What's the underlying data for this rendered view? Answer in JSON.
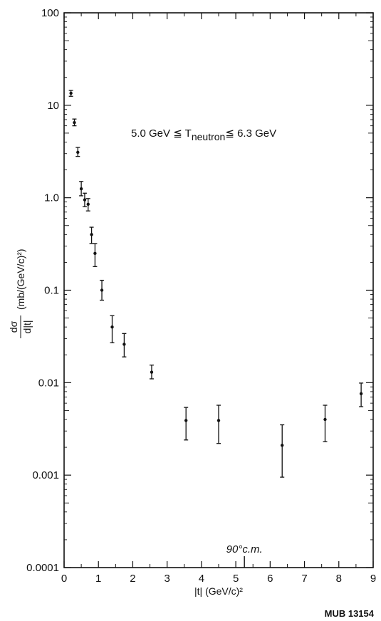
{
  "chart_data": {
    "type": "scatter",
    "xlabel": "|t| (GeV/c)²",
    "ylabel_numerator": "dσ",
    "ylabel_denominator": "d|t|",
    "ylabel_units": "(mb/(GeV/c)²)",
    "xlim": [
      0,
      9
    ],
    "ylim": [
      0.0001,
      100
    ],
    "yscale": "log",
    "grid": false,
    "x_ticks": [
      "0",
      "1",
      "2",
      "3",
      "4",
      "5",
      "6",
      "7",
      "8",
      "9"
    ],
    "y_ticks": [
      "0.0001",
      "0.001",
      "0.01",
      "0.1",
      "1.0",
      "10",
      "100"
    ],
    "annotation": {
      "prefix": "5.0 GeV ≦ T",
      "subscript": "neutron",
      "suffix": "≦ 6.3 GeV"
    },
    "marker_label": "90°c.m.",
    "marker_x": 5.25,
    "points": [
      {
        "x": 0.2,
        "y": 13.5,
        "ylow": 12.5,
        "yhigh": 14.5
      },
      {
        "x": 0.3,
        "y": 6.5,
        "ylow": 6.0,
        "yhigh": 7.1
      },
      {
        "x": 0.4,
        "y": 3.1,
        "ylow": 2.8,
        "yhigh": 3.5
      },
      {
        "x": 0.5,
        "y": 1.25,
        "ylow": 1.05,
        "yhigh": 1.5
      },
      {
        "x": 0.6,
        "y": 0.95,
        "ylow": 0.8,
        "yhigh": 1.12
      },
      {
        "x": 0.7,
        "y": 0.85,
        "ylow": 0.72,
        "yhigh": 0.98
      },
      {
        "x": 0.8,
        "y": 0.4,
        "ylow": 0.32,
        "yhigh": 0.48
      },
      {
        "x": 0.9,
        "y": 0.25,
        "ylow": 0.18,
        "yhigh": 0.32
      },
      {
        "x": 1.1,
        "y": 0.1,
        "ylow": 0.078,
        "yhigh": 0.128
      },
      {
        "x": 1.4,
        "y": 0.04,
        "ylow": 0.027,
        "yhigh": 0.053
      },
      {
        "x": 1.75,
        "y": 0.026,
        "ylow": 0.019,
        "yhigh": 0.034
      },
      {
        "x": 2.55,
        "y": 0.013,
        "ylow": 0.011,
        "yhigh": 0.0155
      },
      {
        "x": 3.55,
        "y": 0.0039,
        "ylow": 0.0024,
        "yhigh": 0.0054
      },
      {
        "x": 4.5,
        "y": 0.0039,
        "ylow": 0.0022,
        "yhigh": 0.0057
      },
      {
        "x": 6.35,
        "y": 0.0021,
        "ylow": 0.00095,
        "yhigh": 0.0035
      },
      {
        "x": 7.6,
        "y": 0.004,
        "ylow": 0.0023,
        "yhigh": 0.0057
      },
      {
        "x": 8.65,
        "y": 0.0076,
        "ylow": 0.0055,
        "yhigh": 0.0099
      }
    ]
  },
  "footer_code": "MUB 13154"
}
